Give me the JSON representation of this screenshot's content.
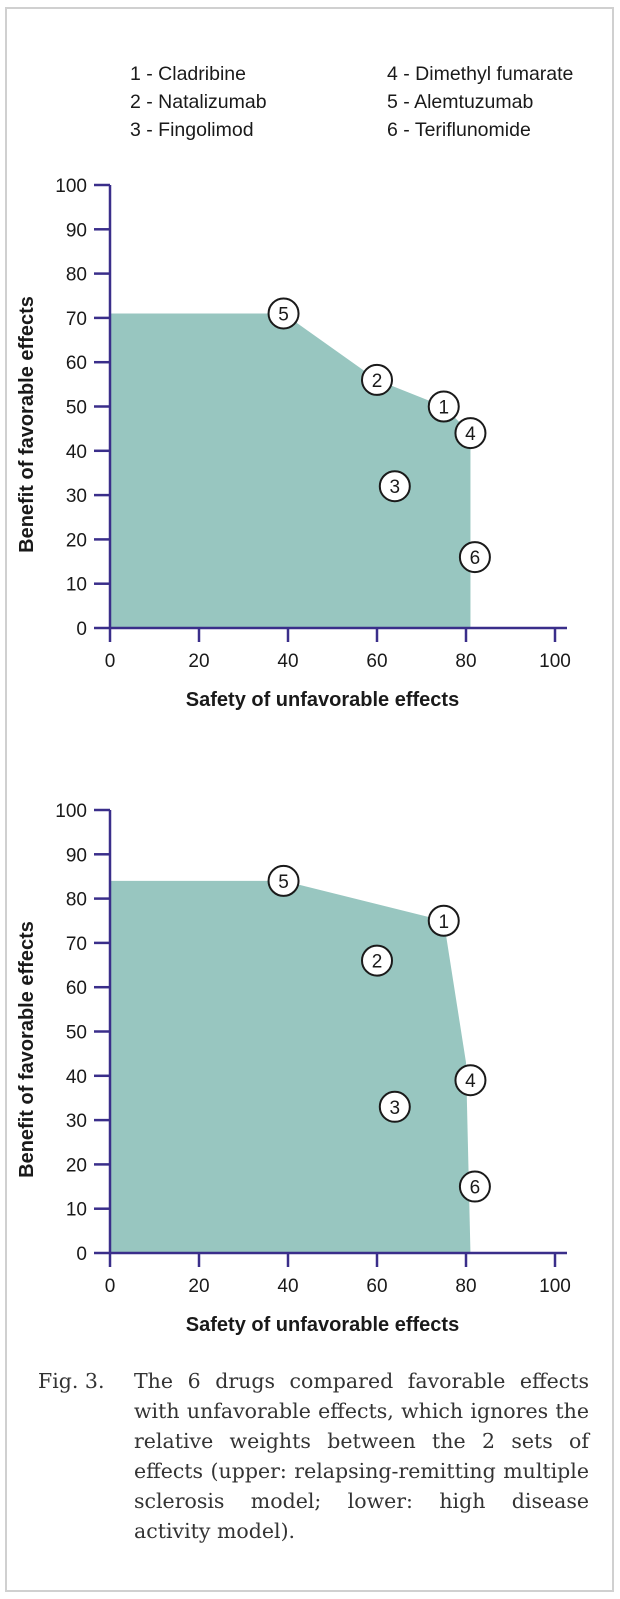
{
  "legend": {
    "items": [
      "1 - Cladribine",
      "2 - Natalizumab",
      "3 - Fingolimod",
      "4 - Dimethyl fumarate",
      "5 - Alemtuzumab",
      "6 - Teriflunomide"
    ]
  },
  "chart_data": [
    {
      "type": "scatter",
      "xlabel": "Safety of unfavorable effects",
      "ylabel": "Benefit of favorable effects",
      "xlim": [
        0,
        100
      ],
      "ylim": [
        0,
        100
      ],
      "xticks": [
        "0",
        "20",
        "40",
        "60",
        "80",
        "100"
      ],
      "yticks": [
        "0",
        "10",
        "20",
        "30",
        "40",
        "50",
        "60",
        "70",
        "80",
        "90",
        "100"
      ],
      "fill_color": "#98c6c0",
      "axis_color": "#3a2e8a",
      "points": [
        {
          "label": "1",
          "x": 75,
          "y": 50
        },
        {
          "label": "2",
          "x": 60,
          "y": 56
        },
        {
          "label": "3",
          "x": 64,
          "y": 32
        },
        {
          "label": "4",
          "x": 81,
          "y": 44
        },
        {
          "label": "5",
          "x": 39,
          "y": 71
        },
        {
          "label": "6",
          "x": 82,
          "y": 16
        }
      ],
      "frontier": [
        [
          0,
          71
        ],
        [
          39,
          71
        ],
        [
          60,
          56
        ],
        [
          75,
          50
        ],
        [
          81,
          44
        ],
        [
          81,
          0
        ],
        [
          0,
          0
        ]
      ]
    },
    {
      "type": "scatter",
      "xlabel": "Safety of unfavorable effects",
      "ylabel": "Benefit of favorable effects",
      "xlim": [
        0,
        100
      ],
      "ylim": [
        0,
        100
      ],
      "xticks": [
        "0",
        "20",
        "40",
        "60",
        "80",
        "100"
      ],
      "yticks": [
        "0",
        "10",
        "20",
        "30",
        "40",
        "50",
        "60",
        "70",
        "80",
        "90",
        "100"
      ],
      "fill_color": "#98c6c0",
      "axis_color": "#3a2e8a",
      "points": [
        {
          "label": "1",
          "x": 75,
          "y": 75
        },
        {
          "label": "2",
          "x": 60,
          "y": 66
        },
        {
          "label": "3",
          "x": 64,
          "y": 33
        },
        {
          "label": "4",
          "x": 81,
          "y": 39
        },
        {
          "label": "5",
          "x": 39,
          "y": 84
        },
        {
          "label": "6",
          "x": 82,
          "y": 15
        }
      ],
      "frontier": [
        [
          0,
          84
        ],
        [
          39,
          84
        ],
        [
          75,
          75
        ],
        [
          80,
          43
        ],
        [
          81,
          0
        ],
        [
          0,
          0
        ]
      ]
    }
  ],
  "caption": {
    "number": "Fig. 3.",
    "text": "The 6 drugs compared favorable effects with unfavorable effects, which ignores the relative weights between the 2 sets of effects (upper: relapsing-remitting multiple sclerosis model; lower: high disease activity model)."
  }
}
